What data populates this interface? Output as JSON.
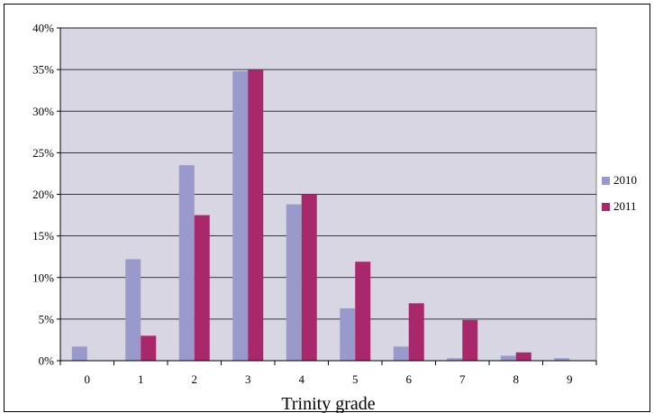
{
  "chart_data": {
    "type": "bar",
    "title": "",
    "xlabel": "Trinity grade",
    "ylabel": "",
    "categories": [
      "0",
      "1",
      "2",
      "3",
      "4",
      "5",
      "6",
      "7",
      "8",
      "9"
    ],
    "series": [
      {
        "name": "2010",
        "color": "#9999cc",
        "values": [
          1.7,
          12.2,
          23.5,
          34.8,
          18.8,
          6.3,
          1.7,
          0.3,
          0.6,
          0.3
        ]
      },
      {
        "name": "2011",
        "color": "#a8286b",
        "values": [
          0,
          3.0,
          17.5,
          35.0,
          20.0,
          11.9,
          6.9,
          4.9,
          1.0,
          0
        ]
      }
    ],
    "ylim": [
      0,
      40
    ],
    "yticks": [
      "0%",
      "5%",
      "10%",
      "15%",
      "20%",
      "25%",
      "30%",
      "35%",
      "40%"
    ],
    "ytick_values": [
      0,
      5,
      10,
      15,
      20,
      25,
      30,
      35,
      40
    ],
    "grid": true,
    "plot_background": "#d9d6e3",
    "legend_position": "right"
  }
}
